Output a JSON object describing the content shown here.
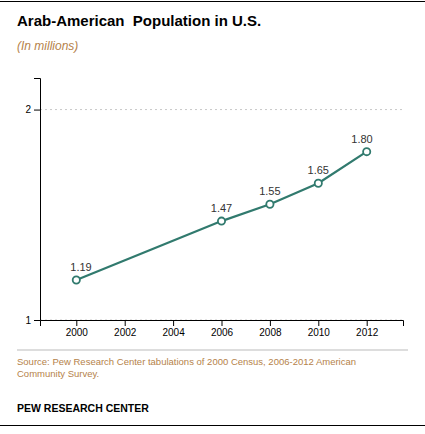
{
  "chart_data": {
    "type": "line",
    "title": "Arab-American  Population in U.S.",
    "subtitle": "(In millions)",
    "x": [
      2000,
      2006,
      2008,
      2010,
      2012
    ],
    "values": [
      1.19,
      1.47,
      1.55,
      1.65,
      1.8
    ],
    "value_labels": [
      "1.19",
      "1.47",
      "1.55",
      "1.65",
      "1.80"
    ],
    "data_labels": true,
    "color": "#317a6e",
    "marker": "circle",
    "xlim": [
      1998.5,
      2013.5
    ],
    "xticks": [
      2000,
      2002,
      2004,
      2006,
      2008,
      2010,
      2012
    ],
    "ylim": [
      1.0,
      2.15
    ],
    "yticks": [
      1,
      2
    ],
    "grid": true,
    "annotations": [
      "Source: Pew Research Center tabulations of 2000 Census, 2006-2012 American\nCommunity Survey.",
      "PEW RESEARCH CENTER"
    ]
  }
}
